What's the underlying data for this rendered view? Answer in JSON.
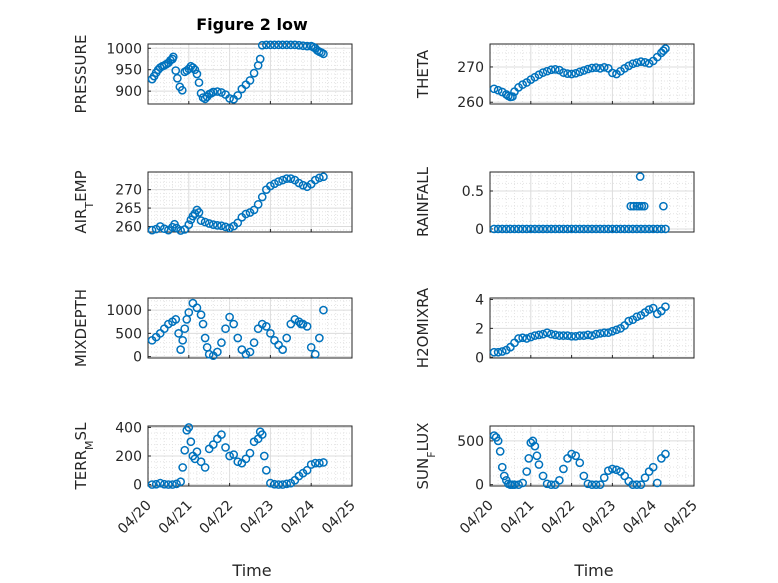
{
  "figure": {
    "title": "Figure 2 low",
    "xlabel": "Time",
    "x_tick_labels": [
      "04/20",
      "04/21",
      "04/22",
      "04/23",
      "04/24",
      "04/25"
    ],
    "marker_color": "#0072BD",
    "marker": "open-circle"
  },
  "chart_data": [
    {
      "type": "scatter",
      "panel": "pressure",
      "ylabel": "PRESSURE",
      "xlim": [
        0,
        5
      ],
      "ylim": [
        870,
        1010
      ],
      "yticks": [
        900,
        950,
        1000
      ],
      "grid": true,
      "x": [
        0.1,
        0.15,
        0.2,
        0.25,
        0.3,
        0.35,
        0.4,
        0.45,
        0.5,
        0.55,
        0.6,
        0.62,
        0.68,
        0.72,
        0.78,
        0.84,
        0.9,
        0.95,
        1.0,
        1.05,
        1.1,
        1.15,
        1.2,
        1.25,
        1.3,
        1.35,
        1.4,
        1.45,
        1.5,
        1.55,
        1.6,
        1.7,
        1.8,
        1.9,
        2.0,
        2.1,
        2.2,
        2.3,
        2.4,
        2.5,
        2.6,
        2.7,
        2.75,
        2.8,
        2.9,
        3.0,
        3.1,
        3.2,
        3.3,
        3.4,
        3.5,
        3.6,
        3.7,
        3.8,
        3.9,
        4.0,
        4.05,
        4.1,
        4.15,
        4.2,
        4.25,
        4.3
      ],
      "y": [
        928,
        935,
        943,
        950,
        955,
        958,
        960,
        963,
        966,
        972,
        975,
        980,
        948,
        930,
        910,
        902,
        945,
        948,
        952,
        958,
        955,
        950,
        940,
        920,
        895,
        885,
        882,
        887,
        893,
        895,
        898,
        899,
        897,
        892,
        883,
        881,
        890,
        905,
        915,
        925,
        942,
        960,
        975,
        1007,
        1008,
        1008,
        1008,
        1008,
        1008,
        1008,
        1008,
        1008,
        1007,
        1006,
        1005,
        1005,
        1003,
        1000,
        995,
        992,
        990,
        987
      ]
    },
    {
      "type": "scatter",
      "panel": "theta",
      "ylabel": "THETA",
      "xlim": [
        0,
        5
      ],
      "ylim": [
        259.5,
        276.5
      ],
      "yticks": [
        260,
        270
      ],
      "grid": true,
      "x": [
        0.1,
        0.2,
        0.3,
        0.4,
        0.45,
        0.5,
        0.55,
        0.6,
        0.7,
        0.8,
        0.9,
        1.0,
        1.1,
        1.2,
        1.3,
        1.4,
        1.5,
        1.6,
        1.7,
        1.8,
        1.9,
        2.0,
        2.1,
        2.2,
        2.3,
        2.4,
        2.5,
        2.6,
        2.7,
        2.8,
        2.9,
        3.0,
        3.1,
        3.2,
        3.3,
        3.4,
        3.5,
        3.6,
        3.7,
        3.8,
        3.9,
        4.0,
        4.1,
        4.2,
        4.25,
        4.3
      ],
      "y": [
        263.8,
        263.4,
        262.9,
        262.2,
        261.8,
        261.5,
        261.6,
        263.0,
        264.2,
        265.0,
        265.6,
        266.4,
        267.1,
        267.8,
        268.4,
        268.8,
        269.2,
        269.3,
        269.1,
        268.4,
        268.1,
        268.0,
        268.2,
        268.6,
        269.0,
        269.4,
        269.7,
        269.8,
        269.6,
        269.9,
        269.6,
        268.3,
        268.0,
        268.8,
        269.6,
        270.3,
        270.9,
        271.2,
        271.5,
        271.3,
        271.0,
        271.7,
        272.8,
        274.0,
        274.6,
        275.2
      ]
    },
    {
      "type": "scatter",
      "panel": "air_temp",
      "ylabel": "AIR_TEMP",
      "xlim": [
        0,
        5
      ],
      "ylim": [
        258.5,
        274.8
      ],
      "yticks": [
        260,
        265,
        270
      ],
      "grid": true,
      "x": [
        0.1,
        0.2,
        0.3,
        0.4,
        0.5,
        0.6,
        0.65,
        0.7,
        0.8,
        0.9,
        1.0,
        1.05,
        1.1,
        1.15,
        1.2,
        1.25,
        1.3,
        1.4,
        1.5,
        1.6,
        1.7,
        1.8,
        1.9,
        2.0,
        2.1,
        2.2,
        2.3,
        2.4,
        2.5,
        2.6,
        2.7,
        2.8,
        2.9,
        3.0,
        3.1,
        3.2,
        3.3,
        3.4,
        3.5,
        3.6,
        3.7,
        3.8,
        3.9,
        4.0,
        4.1,
        4.2,
        4.3
      ],
      "y": [
        259.0,
        259.3,
        260.0,
        259.4,
        259.0,
        259.8,
        260.6,
        259.6,
        258.9,
        259.2,
        260.5,
        261.8,
        262.8,
        263.5,
        264.5,
        263.8,
        261.6,
        261.2,
        260.8,
        260.5,
        260.3,
        260.2,
        259.9,
        259.6,
        260.1,
        261.0,
        262.5,
        263.4,
        263.8,
        264.5,
        266.0,
        268.0,
        270.0,
        271.0,
        271.6,
        272.2,
        272.6,
        273.0,
        273.0,
        272.6,
        271.8,
        271.2,
        270.8,
        271.5,
        272.6,
        273.2,
        273.5
      ]
    },
    {
      "type": "scatter",
      "panel": "rainfall",
      "ylabel": "RAINFALL",
      "xlim": [
        0,
        5
      ],
      "ylim": [
        -0.04,
        0.75
      ],
      "yticks": [
        0,
        0.5
      ],
      "grid": true,
      "x": [
        0.1,
        0.2,
        0.3,
        0.4,
        0.5,
        0.6,
        0.7,
        0.8,
        0.9,
        1.0,
        1.1,
        1.2,
        1.3,
        1.4,
        1.5,
        1.6,
        1.7,
        1.8,
        1.9,
        2.0,
        2.1,
        2.2,
        2.3,
        2.4,
        2.5,
        2.6,
        2.7,
        2.8,
        2.9,
        3.0,
        3.1,
        3.2,
        3.3,
        3.4,
        3.5,
        3.6,
        3.7,
        3.8,
        3.9,
        4.0,
        4.1,
        4.2,
        4.3,
        3.45,
        3.52,
        3.6,
        3.66,
        3.72,
        3.78,
        4.25,
        3.68
      ],
      "y": [
        0,
        0,
        0,
        0,
        0,
        0,
        0,
        0,
        0,
        0,
        0,
        0,
        0,
        0,
        0,
        0,
        0,
        0,
        0,
        0,
        0,
        0,
        0,
        0,
        0,
        0,
        0,
        0,
        0,
        0,
        0,
        0,
        0,
        0,
        0,
        0,
        0,
        0,
        0,
        0,
        0,
        0,
        0,
        0.3,
        0.3,
        0.3,
        0.3,
        0.3,
        0.3,
        0.3,
        0.69
      ]
    },
    {
      "type": "scatter",
      "panel": "mixdepth",
      "ylabel": "MIXDEPTH",
      "xlim": [
        0,
        5
      ],
      "ylim": [
        -30,
        1260
      ],
      "yticks": [
        0,
        500,
        1000
      ],
      "grid": true,
      "x": [
        0.1,
        0.2,
        0.3,
        0.4,
        0.5,
        0.6,
        0.68,
        0.75,
        0.8,
        0.85,
        0.9,
        0.95,
        1.0,
        1.1,
        1.2,
        1.3,
        1.35,
        1.4,
        1.45,
        1.5,
        1.6,
        1.7,
        1.8,
        1.9,
        2.0,
        2.1,
        2.2,
        2.3,
        2.4,
        2.5,
        2.6,
        2.7,
        2.8,
        2.9,
        3.0,
        3.1,
        3.2,
        3.3,
        3.4,
        3.5,
        3.6,
        3.7,
        3.75,
        3.8,
        3.9,
        4.0,
        4.1,
        4.2,
        4.3
      ],
      "y": [
        350,
        420,
        500,
        600,
        700,
        750,
        800,
        500,
        150,
        350,
        600,
        800,
        950,
        1150,
        1050,
        900,
        700,
        400,
        200,
        50,
        20,
        100,
        300,
        600,
        850,
        700,
        400,
        150,
        50,
        100,
        300,
        600,
        700,
        650,
        500,
        350,
        250,
        150,
        400,
        700,
        800,
        750,
        700,
        700,
        650,
        200,
        50,
        400,
        1000
      ]
    },
    {
      "type": "scatter",
      "panel": "h2omixra",
      "ylabel": "H2OMIXRA",
      "xlim": [
        0,
        5
      ],
      "ylim": [
        -0.05,
        4.1
      ],
      "yticks": [
        0,
        2,
        4
      ],
      "grid": true,
      "x": [
        0.1,
        0.2,
        0.3,
        0.4,
        0.5,
        0.6,
        0.7,
        0.8,
        0.9,
        1.0,
        1.1,
        1.2,
        1.3,
        1.4,
        1.5,
        1.6,
        1.7,
        1.8,
        1.9,
        2.0,
        2.1,
        2.2,
        2.3,
        2.4,
        2.5,
        2.6,
        2.7,
        2.8,
        2.9,
        3.0,
        3.1,
        3.2,
        3.3,
        3.4,
        3.5,
        3.6,
        3.7,
        3.8,
        3.9,
        4.0,
        4.1,
        4.2,
        4.3
      ],
      "y": [
        0.35,
        0.35,
        0.4,
        0.5,
        0.7,
        1.0,
        1.3,
        1.35,
        1.3,
        1.4,
        1.5,
        1.55,
        1.6,
        1.7,
        1.6,
        1.55,
        1.5,
        1.5,
        1.5,
        1.45,
        1.45,
        1.5,
        1.5,
        1.55,
        1.5,
        1.6,
        1.65,
        1.7,
        1.7,
        1.8,
        1.9,
        2.0,
        2.2,
        2.5,
        2.6,
        2.8,
        2.9,
        3.1,
        3.3,
        3.4,
        3.0,
        3.2,
        3.5
      ]
    },
    {
      "type": "scatter",
      "panel": "terr_msl",
      "ylabel": "TERR_MSL",
      "xlim": [
        0,
        5
      ],
      "ylim": [
        -10,
        410
      ],
      "yticks": [
        0,
        200,
        400
      ],
      "grid": true,
      "x": [
        0.1,
        0.2,
        0.3,
        0.4,
        0.5,
        0.6,
        0.7,
        0.8,
        0.85,
        0.9,
        0.95,
        1.0,
        1.05,
        1.1,
        1.15,
        1.2,
        1.3,
        1.4,
        1.5,
        1.6,
        1.7,
        1.8,
        1.9,
        2.0,
        2.1,
        2.2,
        2.3,
        2.4,
        2.5,
        2.6,
        2.7,
        2.75,
        2.8,
        2.85,
        2.9,
        3.0,
        3.1,
        3.2,
        3.3,
        3.4,
        3.5,
        3.6,
        3.7,
        3.8,
        3.9,
        4.0,
        4.1,
        4.2,
        4.3
      ],
      "y": [
        0,
        2,
        10,
        2,
        0,
        0,
        5,
        20,
        120,
        240,
        380,
        400,
        300,
        200,
        180,
        230,
        160,
        120,
        250,
        280,
        320,
        350,
        260,
        200,
        210,
        160,
        150,
        180,
        220,
        300,
        320,
        370,
        350,
        200,
        100,
        10,
        2,
        0,
        0,
        5,
        10,
        30,
        60,
        80,
        100,
        140,
        150,
        150,
        155
      ]
    },
    {
      "type": "scatter",
      "panel": "sun_flux",
      "ylabel": "SUN_FLUX",
      "xlim": [
        0,
        5
      ],
      "ylim": [
        -15,
        670
      ],
      "yticks": [
        0,
        500
      ],
      "grid": true,
      "x": [
        0.1,
        0.15,
        0.2,
        0.25,
        0.3,
        0.35,
        0.4,
        0.45,
        0.5,
        0.55,
        0.6,
        0.7,
        0.8,
        0.9,
        0.95,
        1.0,
        1.05,
        1.1,
        1.15,
        1.2,
        1.3,
        1.4,
        1.5,
        1.6,
        1.7,
        1.8,
        1.9,
        2.0,
        2.1,
        2.2,
        2.3,
        2.4,
        2.5,
        2.6,
        2.7,
        2.8,
        2.9,
        3.0,
        3.1,
        3.2,
        3.3,
        3.4,
        3.5,
        3.6,
        3.7,
        3.8,
        3.9,
        4.0,
        4.1,
        4.2,
        4.3
      ],
      "y": [
        560,
        540,
        500,
        380,
        200,
        100,
        50,
        10,
        0,
        0,
        0,
        0,
        20,
        150,
        300,
        480,
        500,
        440,
        330,
        230,
        100,
        10,
        0,
        0,
        50,
        180,
        300,
        350,
        330,
        250,
        100,
        10,
        0,
        0,
        0,
        80,
        160,
        180,
        170,
        150,
        100,
        40,
        0,
        0,
        0,
        80,
        150,
        200,
        20,
        300,
        350
      ]
    }
  ]
}
